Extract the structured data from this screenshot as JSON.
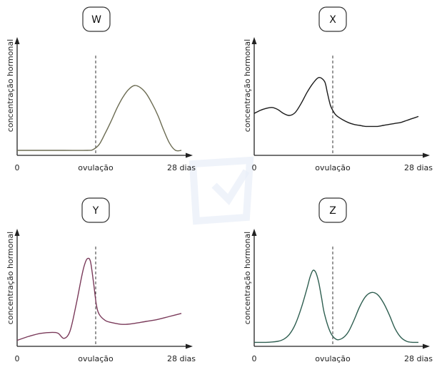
{
  "chart_data": [
    {
      "type": "line",
      "title": "W",
      "ylabel": "concentração hormonal",
      "x_ticks": [
        "0",
        "ovulação",
        "28 dias"
      ],
      "xlim": [
        0,
        28
      ],
      "ylim": [
        0,
        1
      ],
      "ovulation_day": 14,
      "series": [
        {
          "color": "#6b6b52",
          "x": [
            0,
            4,
            8,
            12,
            13,
            14,
            15,
            16,
            17,
            18,
            19,
            20,
            21,
            22,
            23,
            24,
            25,
            26,
            27,
            28
          ],
          "y": [
            0.05,
            0.05,
            0.05,
            0.05,
            0.06,
            0.11,
            0.22,
            0.34,
            0.47,
            0.58,
            0.66,
            0.7,
            0.68,
            0.62,
            0.52,
            0.4,
            0.25,
            0.12,
            0.05,
            0.05
          ]
        }
      ]
    },
    {
      "type": "line",
      "title": "X",
      "ylabel": "concentração hormonal",
      "x_ticks": [
        "0",
        "ovulação",
        "28 dias"
      ],
      "xlim": [
        0,
        28
      ],
      "ylim": [
        0,
        1
      ],
      "ovulation_day": 14,
      "series": [
        {
          "color": "#1a1a1a",
          "x": [
            0,
            1,
            2,
            3,
            4,
            5,
            6,
            7,
            8,
            9,
            10,
            11,
            12,
            12.5,
            13,
            13.5,
            14,
            15,
            16,
            17,
            18,
            19,
            20,
            21,
            22,
            23,
            24,
            25,
            26,
            27,
            28
          ],
          "y": [
            0.42,
            0.45,
            0.47,
            0.48,
            0.46,
            0.42,
            0.4,
            0.43,
            0.52,
            0.63,
            0.72,
            0.78,
            0.74,
            0.62,
            0.5,
            0.44,
            0.4,
            0.36,
            0.33,
            0.31,
            0.3,
            0.29,
            0.29,
            0.29,
            0.3,
            0.31,
            0.32,
            0.33,
            0.35,
            0.37,
            0.39
          ]
        }
      ]
    },
    {
      "type": "line",
      "title": "Y",
      "ylabel": "concentração hormonal",
      "x_ticks": [
        "0",
        "ovulação",
        "28 dias"
      ],
      "xlim": [
        0,
        28
      ],
      "ylim": [
        0,
        1
      ],
      "ovulation_day": 14,
      "series": [
        {
          "color": "#7a3a5a",
          "x": [
            0,
            2,
            4,
            6,
            7,
            8,
            9,
            10,
            11,
            11.5,
            12,
            12.5,
            13,
            13.5,
            14,
            15,
            16,
            18,
            20,
            22,
            24,
            26,
            28
          ],
          "y": [
            0.06,
            0.1,
            0.13,
            0.14,
            0.13,
            0.08,
            0.15,
            0.4,
            0.7,
            0.82,
            0.88,
            0.85,
            0.65,
            0.42,
            0.32,
            0.26,
            0.24,
            0.22,
            0.23,
            0.25,
            0.27,
            0.3,
            0.33
          ]
        }
      ]
    },
    {
      "type": "line",
      "title": "Z",
      "ylabel": "concentração hormonal",
      "x_ticks": [
        "0",
        "ovulação",
        "28 dias"
      ],
      "xlim": [
        0,
        28
      ],
      "ylim": [
        0,
        1
      ],
      "ovulation_day": 14,
      "series": [
        {
          "color": "#2e5e50",
          "x": [
            0,
            2,
            4,
            5,
            6,
            7,
            8,
            9,
            9.5,
            10,
            10.5,
            11,
            11.5,
            12,
            13,
            14,
            15,
            16,
            17,
            18,
            19,
            20,
            21,
            22,
            23,
            24,
            25,
            26,
            27,
            28
          ],
          "y": [
            0.04,
            0.04,
            0.05,
            0.07,
            0.12,
            0.22,
            0.38,
            0.58,
            0.69,
            0.76,
            0.74,
            0.64,
            0.48,
            0.32,
            0.14,
            0.07,
            0.08,
            0.14,
            0.26,
            0.4,
            0.5,
            0.54,
            0.52,
            0.44,
            0.32,
            0.18,
            0.09,
            0.05,
            0.04,
            0.04
          ]
        }
      ]
    }
  ]
}
